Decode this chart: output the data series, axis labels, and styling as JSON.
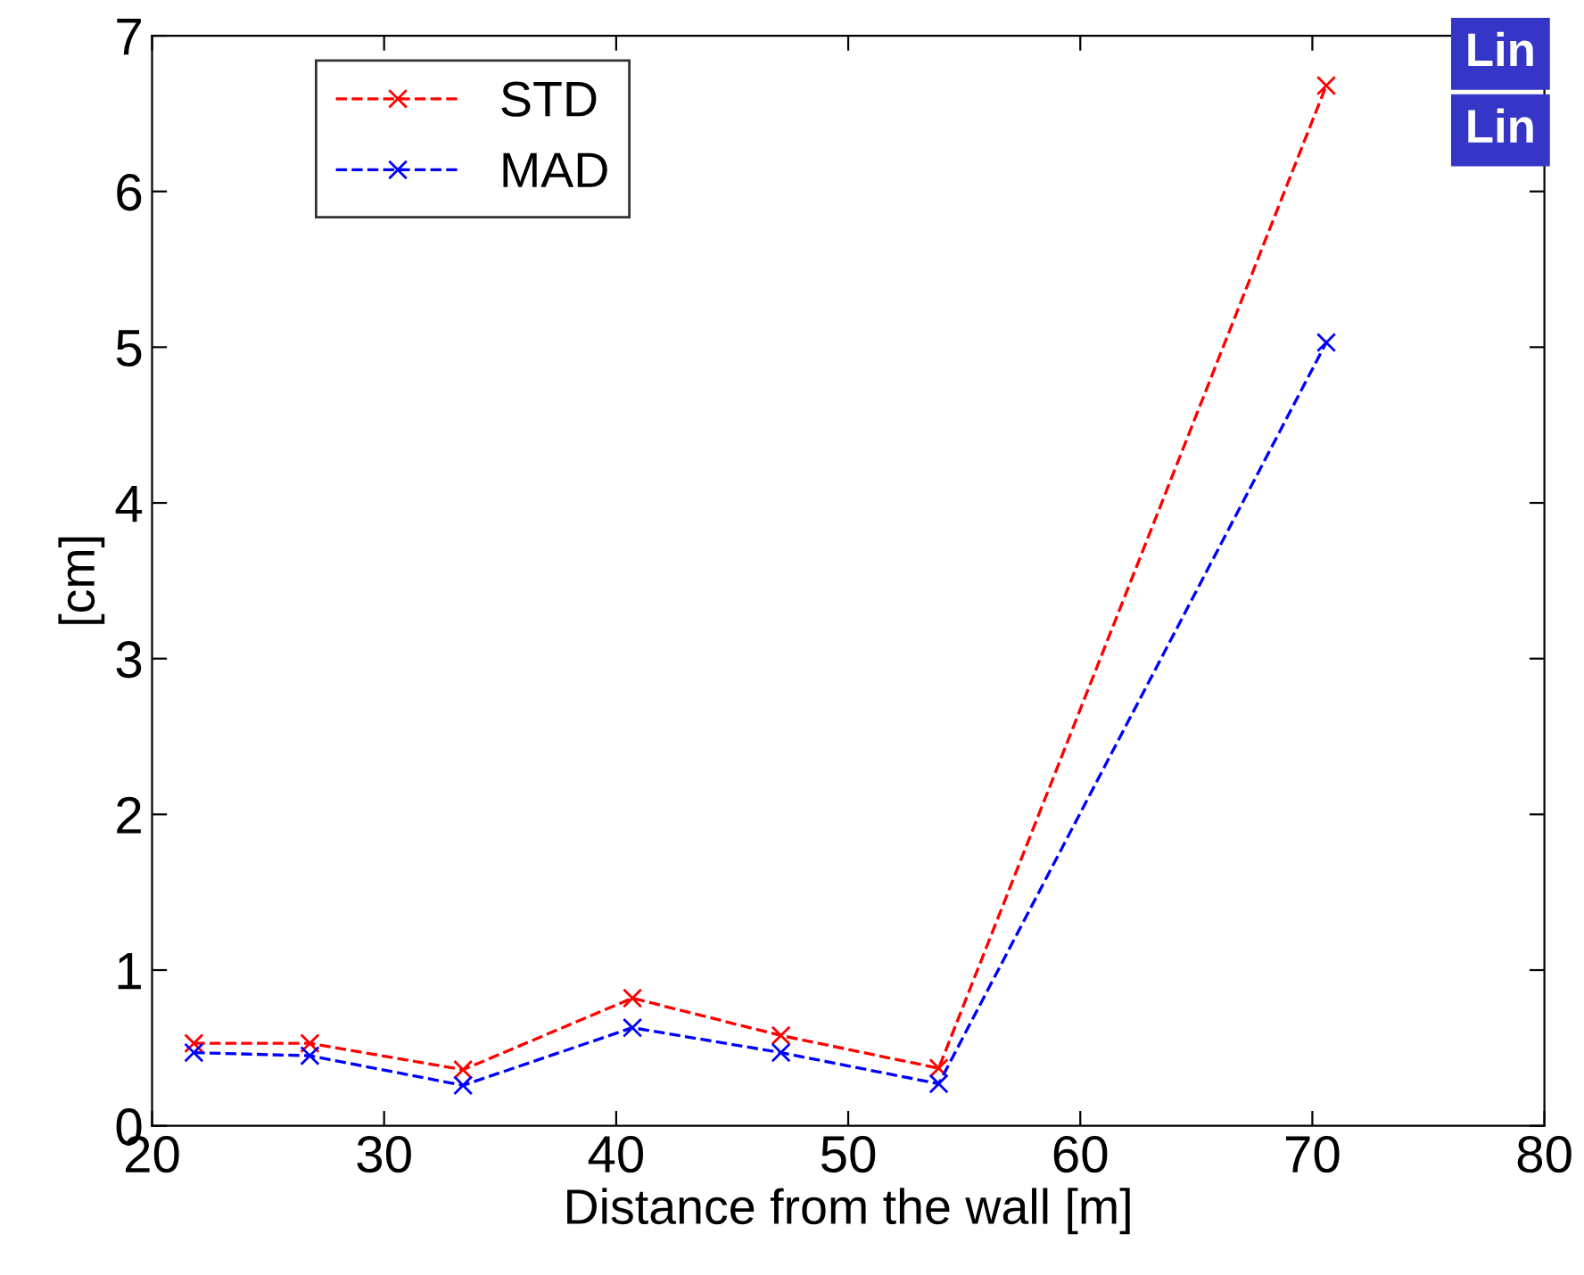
{
  "chart_data": {
    "type": "line",
    "xlabel": "Distance from the wall [m]",
    "ylabel": "[cm]",
    "xlim": [
      20,
      80
    ],
    "xticks": [
      20,
      30,
      40,
      50,
      60,
      70,
      80
    ],
    "ylim": [
      0,
      7
    ],
    "yticks": [
      0,
      1,
      2,
      3,
      4,
      5,
      6,
      7
    ],
    "x": [
      21.8,
      26.8,
      33.4,
      40.7,
      47.1,
      53.9,
      70.6
    ],
    "series": [
      {
        "name": "STD",
        "color": "#ff0000",
        "values": [
          0.53,
          0.53,
          0.36,
          0.82,
          0.58,
          0.37,
          6.68
        ]
      },
      {
        "name": "MAD",
        "color": "#0000ff",
        "values": [
          0.47,
          0.45,
          0.26,
          0.63,
          0.47,
          0.27,
          5.03
        ]
      }
    ],
    "marker": "cross",
    "line_style": "dashed",
    "grid": false,
    "legend": "top left",
    "annotations": [
      "Lin",
      "Lin"
    ]
  }
}
